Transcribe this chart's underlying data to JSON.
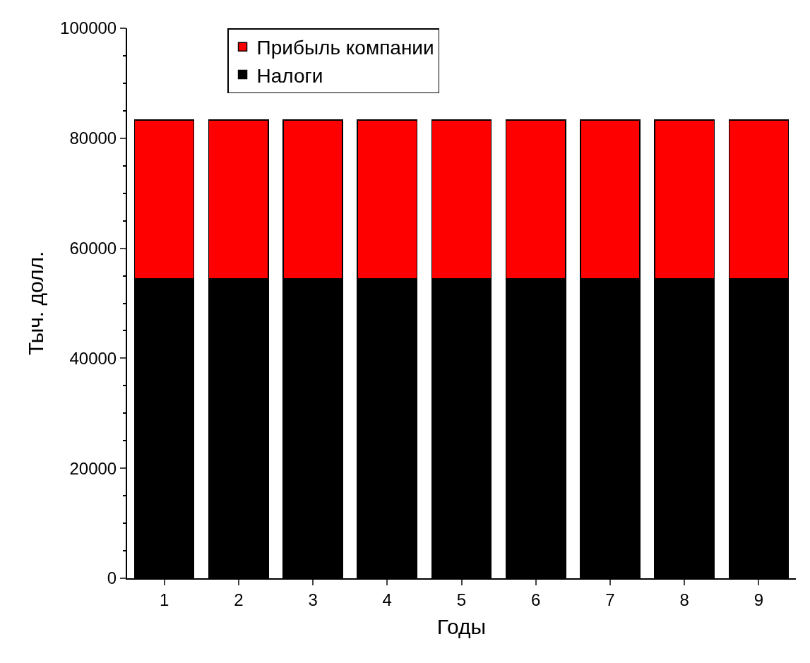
{
  "chart_data": {
    "type": "bar",
    "stacked": true,
    "xlabel": "Годы",
    "ylabel": "Тыч. долл.",
    "categories": [
      "1",
      "2",
      "3",
      "4",
      "5",
      "6",
      "7",
      "8",
      "9"
    ],
    "series": [
      {
        "name": "Налоги",
        "color": "#000000",
        "values": [
          54500,
          54500,
          54500,
          54500,
          54500,
          54500,
          54500,
          54500,
          54500
        ]
      },
      {
        "name": "Прибыль компании",
        "color": "#ff0000",
        "values": [
          28800,
          28800,
          28800,
          28800,
          28800,
          28800,
          28800,
          28800,
          28800
        ]
      }
    ],
    "ylim": [
      0,
      100000
    ],
    "yticks": [
      0,
      20000,
      40000,
      60000,
      80000,
      100000
    ],
    "legend": "top"
  }
}
